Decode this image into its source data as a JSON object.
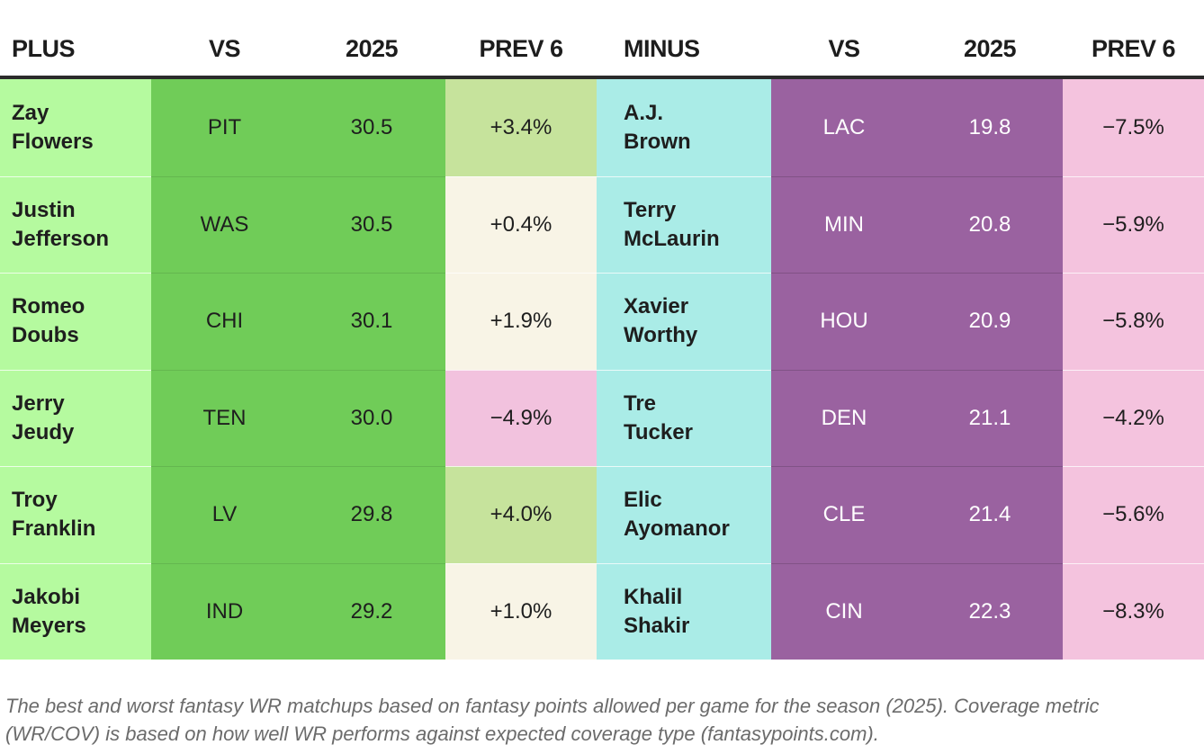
{
  "table": {
    "plus": {
      "headers": {
        "name": "PLUS",
        "vs": "VS",
        "season": "2025",
        "prev": "PREV 6"
      },
      "rows": [
        {
          "first": "Zay",
          "last": "Flowers",
          "vs": "PIT",
          "season": "30.5",
          "prev": "+3.4%",
          "prev_bg": "#c6e39c"
        },
        {
          "first": "Justin",
          "last": "Jefferson",
          "vs": "WAS",
          "season": "30.5",
          "prev": "+0.4%",
          "prev_bg": "#f8f4e6"
        },
        {
          "first": "Romeo",
          "last": "Doubs",
          "vs": "CHI",
          "season": "30.1",
          "prev": "+1.9%",
          "prev_bg": "#f8f4e6"
        },
        {
          "first": "Jerry",
          "last": "Jeudy",
          "vs": "TEN",
          "season": "30.0",
          "prev": "−4.9%",
          "prev_bg": "#f2c2de"
        },
        {
          "first": "Troy",
          "last": "Franklin",
          "vs": "LV",
          "season": "29.8",
          "prev": "+4.0%",
          "prev_bg": "#c6e39c"
        },
        {
          "first": "Jakobi",
          "last": "Meyers",
          "vs": "IND",
          "season": "29.2",
          "prev": "+1.0%",
          "prev_bg": "#f8f4e6"
        }
      ]
    },
    "minus": {
      "headers": {
        "name": "MINUS",
        "vs": "VS",
        "season": "2025",
        "prev": "PREV 6"
      },
      "rows": [
        {
          "first": "A.J.",
          "last": "Brown",
          "vs": "LAC",
          "season": "19.8",
          "prev": "−7.5%",
          "prev_bg": "#f4c3de"
        },
        {
          "first": "Terry",
          "last": "McLaurin",
          "vs": "MIN",
          "season": "20.8",
          "prev": "−5.9%",
          "prev_bg": "#f4c3de"
        },
        {
          "first": "Xavier",
          "last": "Worthy",
          "vs": "HOU",
          "season": "20.9",
          "prev": "−5.8%",
          "prev_bg": "#f4c3de"
        },
        {
          "first": "Tre",
          "last": "Tucker",
          "vs": "DEN",
          "season": "21.1",
          "prev": "−4.2%",
          "prev_bg": "#f4c3de"
        },
        {
          "first": "Elic",
          "last": "Ayomanor",
          "vs": "CLE",
          "season": "21.4",
          "prev": "−5.6%",
          "prev_bg": "#f4c3de"
        },
        {
          "first": "Khalil",
          "last": "Shakir",
          "vs": "CIN",
          "season": "22.3",
          "prev": "−8.3%",
          "prev_bg": "#f4c3de"
        }
      ]
    },
    "colors": {
      "plus_name_bg": "#b5fa9f",
      "plus_mid_bg": "#70cc58",
      "minus_name_bg": "#aaece7",
      "minus_mid_bg": "#9a62a0",
      "minus_prev_bg": "#f4c3de",
      "prev_positive_bg": "#c6e39c",
      "prev_neutral_bg": "#f8f4e6",
      "prev_negative_bg": "#f2c2de",
      "header_rule": "#2b2b2b",
      "caption_text": "#6b6b6b"
    },
    "caption": "The best and worst fantasy WR matchups based on fantasy points allowed per game for the season (2025). Coverage metric (WR/COV) is based on how well WR performs against expected coverage type (fantasypoints.com)."
  }
}
